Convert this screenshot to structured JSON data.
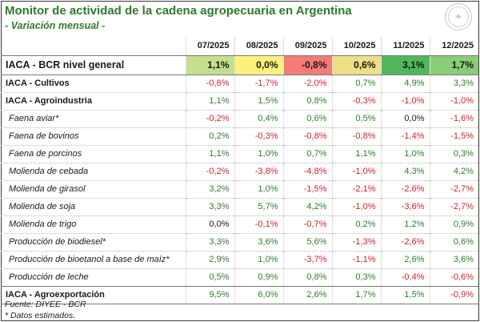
{
  "header": {
    "title": "Monitor de actividad de la cadena agropecuaria en Argentina",
    "subtitle": "- Variación mensual -",
    "seal_icon": "seal-emblem-icon"
  },
  "table": {
    "columns": [
      "07/2025",
      "08/2025",
      "09/2025",
      "10/2025",
      "11/2025",
      "12/2025"
    ],
    "general": {
      "label": "IACA - BCR nivel general",
      "values": [
        "1,1%",
        "0,0%",
        "-0,8%",
        "0,6%",
        "3,1%",
        "1,7%"
      ],
      "fills": [
        "#c6df8f",
        "#fff07a",
        "#f47b76",
        "#eddf86",
        "#4fb85c",
        "#8acd77"
      ]
    },
    "rows": [
      {
        "label": "IACA - Cultivos",
        "kind": "group",
        "values": [
          "-0,6%",
          "-1,7%",
          "-2,0%",
          "0,7%",
          "4,9%",
          "3,3%"
        ]
      },
      {
        "label": "IACA - Agroindustria",
        "kind": "group",
        "values": [
          "1,1%",
          "1,5%",
          "0,8%",
          "-0,3%",
          "-1,0%",
          "-1,0%"
        ]
      },
      {
        "label": "Faena aviar*",
        "kind": "sub",
        "values": [
          "-0,2%",
          "0,4%",
          "0,6%",
          "0,5%",
          "0,0%",
          "-1,6%"
        ]
      },
      {
        "label": "Faena de bovinos",
        "kind": "sub",
        "values": [
          "0,2%",
          "-0,3%",
          "-0,8%",
          "-0,8%",
          "-1,4%",
          "-1,5%"
        ]
      },
      {
        "label": "Faena de porcinos",
        "kind": "sub",
        "values": [
          "1,1%",
          "1,0%",
          "0,7%",
          "1,1%",
          "1,0%",
          "0,3%"
        ]
      },
      {
        "label": "Molienda de cebada",
        "kind": "sub",
        "values": [
          "-0,2%",
          "-3,8%",
          "-4,8%",
          "-1,0%",
          "4,3%",
          "4,2%"
        ]
      },
      {
        "label": "Molienda de girasol",
        "kind": "sub",
        "values": [
          "3,2%",
          "1,0%",
          "-1,5%",
          "-2,1%",
          "-2,6%",
          "-2,7%"
        ]
      },
      {
        "label": "Molienda de soja",
        "kind": "sub",
        "values": [
          "3,3%",
          "5,7%",
          "4,2%",
          "-1,0%",
          "-3,6%",
          "-2,7%"
        ]
      },
      {
        "label": "Molienda de trigo",
        "kind": "sub",
        "values": [
          "0,0%",
          "-0,1%",
          "-0,7%",
          "0,2%",
          "1,2%",
          "0,9%"
        ]
      },
      {
        "label": "Producción de biodiesel*",
        "kind": "sub",
        "values": [
          "3,3%",
          "3,6%",
          "5,6%",
          "-1,3%",
          "-2,6%",
          "0,6%"
        ]
      },
      {
        "label": "Producción de bioetanol a base de maíz*",
        "kind": "sub",
        "values": [
          "2,9%",
          "1,0%",
          "-3,7%",
          "-1,1%",
          "2,6%",
          "3,6%"
        ]
      },
      {
        "label": "Producción de leche",
        "kind": "sub",
        "values": [
          "0,5%",
          "0,9%",
          "0,8%",
          "0,3%",
          "-0,4%",
          "-0,6%"
        ]
      },
      {
        "label": "IACA - Agroexportación",
        "kind": "agro",
        "values": [
          "9,5%",
          "6,0%",
          "2,6%",
          "1,7%",
          "1,5%",
          "-0,9%"
        ]
      }
    ]
  },
  "footnotes": {
    "source": "Fuente: DIYEE - BCR",
    "estimated": "* Datos estimados."
  },
  "colors": {
    "positive": "#2e7d2a",
    "negative": "#d0222a",
    "title": "#2f7a2b"
  }
}
